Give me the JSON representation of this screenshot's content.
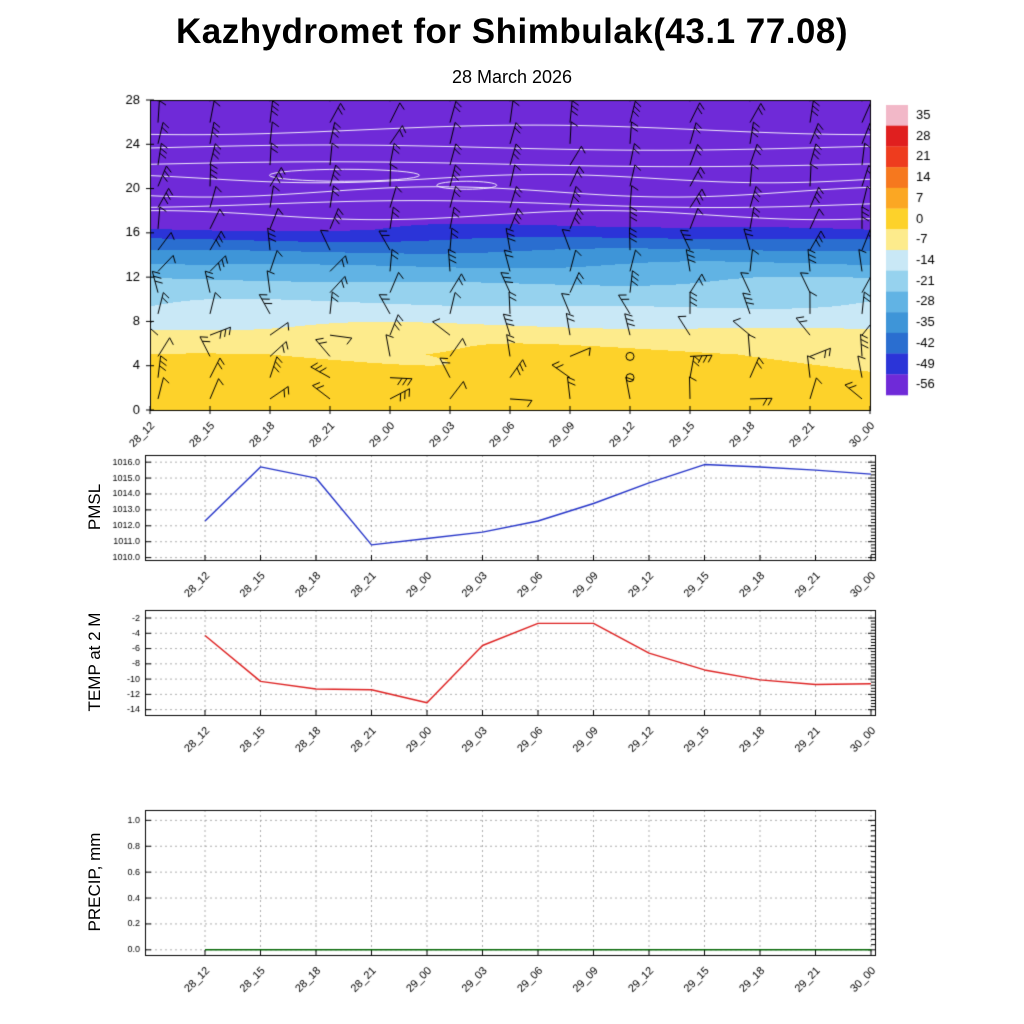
{
  "title": "Kazhydromet for Shimbulak(43.1 77.08)",
  "subtitle": "28 March 2026",
  "time_labels": [
    "28_12",
    "28_15",
    "28_18",
    "28_21",
    "29_00",
    "29_03",
    "29_06",
    "29_09",
    "29_12",
    "29_15",
    "29_18",
    "29_21",
    "30_00"
  ],
  "panel_titles": {
    "pmsl": "PMSL",
    "temp": "TEMP at 2 M",
    "precip": "PRECIP, mm"
  },
  "chart_data": [
    {
      "id": "cross_section",
      "type": "heatmap",
      "title": "Time-height temperature cross-section with wind barbs",
      "x": [
        "28_12",
        "28_15",
        "28_18",
        "28_21",
        "29_00",
        "29_03",
        "29_06",
        "29_09",
        "29_12",
        "29_15",
        "29_18",
        "29_21",
        "30_00"
      ],
      "ylim": [
        0,
        28
      ],
      "y_ticks": [
        0,
        4,
        8,
        12,
        16,
        20,
        24,
        28
      ],
      "colorbar_ticks": [
        35,
        28,
        21,
        14,
        7,
        0,
        -7,
        -14,
        -21,
        -28,
        -35,
        -42,
        -49,
        -56
      ],
      "colorbar_colors": [
        "#f2b8c8",
        "#e01f1f",
        "#ee3c1e",
        "#f6781e",
        "#fba723",
        "#fdd22a",
        "#fdeb8c",
        "#c9e8f6",
        "#96d2ee",
        "#61b3e4",
        "#3e95d8",
        "#2a6ed0",
        "#2b34d8",
        "#6f2ad8"
      ],
      "temperature_profile": {
        "heights": [
          0,
          5,
          6.5,
          7.5,
          8.5,
          9.5,
          10.5,
          12,
          14,
          15.5,
          16.3,
          17.5,
          28
        ],
        "temps": [
          -2,
          -3,
          -6.5,
          -10.5,
          -14.5,
          -17.5,
          -20.5,
          -26,
          -36,
          -46,
          -52,
          -56,
          -55
        ]
      },
      "contour_color": "#ffffff",
      "wind_barbs": {
        "color": "#000000",
        "columns": 13,
        "rows": 15
      },
      "calm_markers": [
        {
          "time_index": 8,
          "height": 2.9
        },
        {
          "time_index": 8,
          "height": 4.8
        }
      ]
    },
    {
      "id": "pmsl",
      "type": "line",
      "label": "PMSL",
      "color": "#2433c8",
      "x": [
        "28_12",
        "28_15",
        "28_18",
        "28_21",
        "29_00",
        "29_03",
        "29_06",
        "29_09",
        "29_12",
        "29_15",
        "29_18",
        "29_21",
        "30_00"
      ],
      "values": [
        1012.3,
        1015.7,
        1015.0,
        1010.8,
        1011.2,
        1011.6,
        1012.3,
        1013.4,
        1014.7,
        1015.85,
        1015.7,
        1015.5,
        1015.25
      ],
      "ylim": [
        1009.85,
        1016.45
      ],
      "y_ticks": [
        1010,
        1011,
        1012,
        1013,
        1014,
        1015,
        1016
      ],
      "y_tick_labels": [
        "1010.0",
        "1011.0",
        "1012.0",
        "1013.0",
        "1014.0",
        "1015.0",
        "1016.0"
      ],
      "grid": "dashed"
    },
    {
      "id": "temp2m",
      "type": "line",
      "label": "TEMP at 2 M",
      "color": "#dd1f1f",
      "x": [
        "28_12",
        "28_15",
        "28_18",
        "28_21",
        "29_00",
        "29_03",
        "29_06",
        "29_09",
        "29_12",
        "29_15",
        "29_18",
        "29_21",
        "30_00"
      ],
      "values": [
        -4.3,
        -10.3,
        -11.3,
        -11.4,
        -13.1,
        -5.6,
        -2.7,
        -2.7,
        -6.6,
        -8.8,
        -10.1,
        -10.7,
        -10.6
      ],
      "ylim": [
        -14.7,
        -0.95
      ],
      "y_ticks": [
        -2,
        -4,
        -6,
        -8,
        -10,
        -12,
        -14
      ],
      "y_tick_labels": [
        "-2",
        "-4",
        "-6",
        "-8",
        "-10",
        "-12",
        "-14"
      ],
      "grid": "dashed"
    },
    {
      "id": "precip",
      "type": "line",
      "label": "PRECIP, mm",
      "color": "#006400",
      "x": [
        "28_12",
        "28_15",
        "28_18",
        "28_21",
        "29_00",
        "29_03",
        "29_06",
        "29_09",
        "29_12",
        "29_15",
        "29_18",
        "29_21",
        "30_00"
      ],
      "values": [
        0,
        0,
        0,
        0,
        0,
        0,
        0,
        0,
        0,
        0,
        0,
        0,
        0
      ],
      "ylim": [
        -0.04,
        1.08
      ],
      "y_ticks": [
        0,
        0.2,
        0.4,
        0.6,
        0.8,
        1.0
      ],
      "y_tick_labels": [
        "0.0",
        "0.2",
        "0.4",
        "0.6",
        "0.8",
        "1.0"
      ],
      "grid": "dashed"
    }
  ]
}
